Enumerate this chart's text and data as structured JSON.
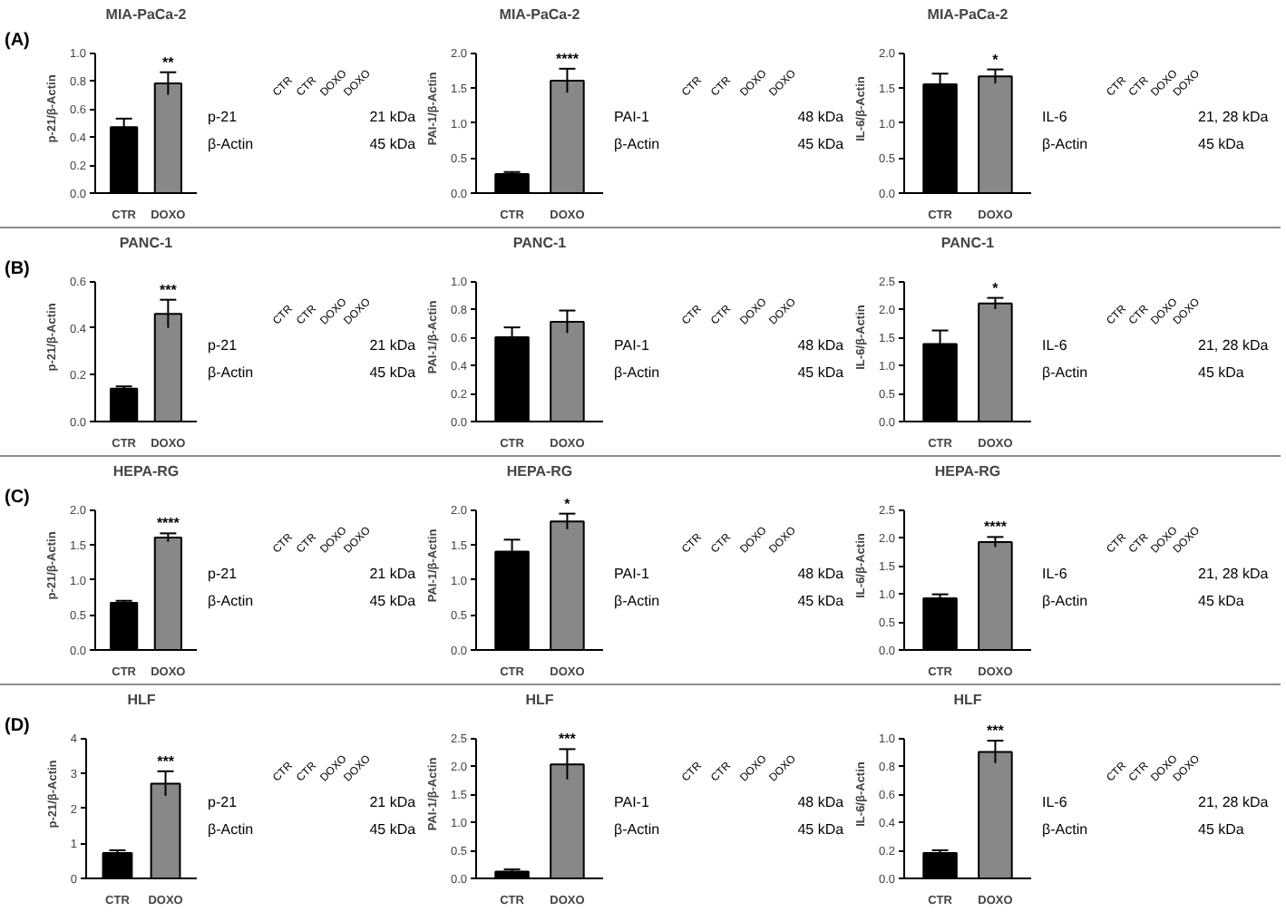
{
  "chart_data": [
    {
      "type": "bar",
      "title": "MIA-PaCa-2",
      "ylabel": "p-21/β-Actin",
      "categories": [
        "CTR",
        "DOXO"
      ],
      "values": [
        0.47,
        0.78
      ],
      "colors": [
        "#000000",
        "#888888"
      ],
      "errors": [
        0.06,
        0.08
      ],
      "ylim": [
        0,
        1
      ],
      "yticks": [
        {
          "value": 0,
          "label": "0.0"
        },
        0.2,
        0.4,
        0.6,
        0.8,
        {
          "value": 1,
          "label": "1.0"
        }
      ],
      "annotations": [
        "(A)",
        {
          "text": "**",
          "x": "DOXO",
          "y": 0.86
        }
      ]
    },
    {
      "type": "other",
      "categories": [
        "CTR",
        "CTR",
        "DOXO",
        "DOXO"
      ],
      "y_categories": [
        "p-21",
        "β-Actin"
      ],
      "y2_categories": [
        "21 kDa",
        "45 kDa"
      ]
    },
    {
      "type": "bar",
      "title": "MIA-PaCa-2",
      "ylabel": "PAI-1/β-Actin",
      "categories": [
        "CTR",
        "DOXO"
      ],
      "values": [
        0.27,
        1.6
      ],
      "colors": [
        "#000000",
        "#888888"
      ],
      "errors": [
        0.03,
        0.17
      ],
      "ylim": [
        0,
        2
      ],
      "yticks": [
        {
          "value": 0,
          "label": "0.0"
        },
        0.5,
        {
          "value": 1,
          "label": "1.0"
        },
        1.5,
        {
          "value": 2,
          "label": "2.0"
        }
      ],
      "annotations": [
        {
          "text": "****",
          "x": "DOXO",
          "y": 1.77
        }
      ]
    },
    {
      "type": "other",
      "categories": [
        "CTR",
        "CTR",
        "DOXO",
        "DOXO"
      ],
      "y_categories": [
        "PAI-1",
        "β-Actin"
      ],
      "y2_categories": [
        "48 kDa",
        "45 kDa"
      ]
    },
    {
      "type": "bar",
      "title": "MIA-PaCa-2",
      "ylabel": "IL-6/β-Actin",
      "categories": [
        "CTR",
        "DOXO"
      ],
      "values": [
        1.55,
        1.66
      ],
      "colors": [
        "#000000",
        "#888888"
      ],
      "errors": [
        0.15,
        0.1
      ],
      "ylim": [
        0,
        2
      ],
      "yticks": [
        {
          "value": 0,
          "label": "0.0"
        },
        0.5,
        {
          "value": 1,
          "label": "1.0"
        },
        1.5,
        {
          "value": 2,
          "label": "2.0"
        }
      ],
      "annotations": [
        {
          "text": "*",
          "x": "DOXO",
          "y": 1.76
        }
      ]
    },
    {
      "type": "other",
      "categories": [
        "CTR",
        "CTR",
        "DOXO",
        "DOXO"
      ],
      "y_categories": [
        "IL-6",
        "β-Actin"
      ],
      "y2_categories": [
        "21, 28 kDa",
        "45 kDa"
      ]
    },
    {
      "type": "bar",
      "title": "PANC-1",
      "ylabel": "p-21/β-Actin",
      "categories": [
        "CTR",
        "DOXO"
      ],
      "values": [
        0.14,
        0.46
      ],
      "colors": [
        "#000000",
        "#888888"
      ],
      "errors": [
        0.01,
        0.06
      ],
      "ylim": [
        0,
        0.6
      ],
      "yticks": [
        {
          "value": 0,
          "label": "0.0"
        },
        0.2,
        0.4,
        0.6
      ],
      "annotations": [
        "(B)",
        {
          "text": "***",
          "x": "DOXO",
          "y": 0.52
        }
      ]
    },
    {
      "type": "other",
      "categories": [
        "CTR",
        "CTR",
        "DOXO",
        "DOXO"
      ],
      "y_categories": [
        "p-21",
        "β-Actin"
      ],
      "y2_categories": [
        "21 kDa",
        "45 kDa"
      ]
    },
    {
      "type": "bar",
      "title": "PANC-1",
      "ylabel": "PAI-1/β-Actin",
      "categories": [
        "CTR",
        "DOXO"
      ],
      "values": [
        0.6,
        0.71
      ],
      "colors": [
        "#000000",
        "#888888"
      ],
      "errors": [
        0.07,
        0.08
      ],
      "ylim": [
        0,
        1
      ],
      "yticks": [
        {
          "value": 0,
          "label": "0.0"
        },
        0.2,
        0.4,
        0.6,
        0.8,
        {
          "value": 1,
          "label": "1.0"
        }
      ]
    },
    {
      "type": "other",
      "categories": [
        "CTR",
        "CTR",
        "DOXO",
        "DOXO"
      ],
      "y_categories": [
        "PAI-1",
        "β-Actin"
      ],
      "y2_categories": [
        "48 kDa",
        "45 kDa"
      ]
    },
    {
      "type": "bar",
      "title": "PANC-1",
      "ylabel": "IL-6/β-Actin",
      "categories": [
        "CTR",
        "DOXO"
      ],
      "values": [
        1.38,
        2.1
      ],
      "colors": [
        "#000000",
        "#888888"
      ],
      "errors": [
        0.24,
        0.1
      ],
      "ylim": [
        0,
        2.5
      ],
      "yticks": [
        {
          "value": 0,
          "label": "0.0"
        },
        0.5,
        {
          "value": 1,
          "label": "1.0"
        },
        1.5,
        {
          "value": 2,
          "label": "2.0"
        },
        2.5
      ],
      "annotations": [
        {
          "text": "*",
          "x": "DOXO",
          "y": 2.2
        }
      ]
    },
    {
      "type": "other",
      "categories": [
        "CTR",
        "CTR",
        "DOXO",
        "DOXO"
      ],
      "y_categories": [
        "IL-6",
        "β-Actin"
      ],
      "y2_categories": [
        "21, 28 kDa",
        "45 kDa"
      ]
    },
    {
      "type": "bar",
      "title": "HEPA-RG",
      "ylabel": "p-21/β-Actin",
      "categories": [
        "CTR",
        "DOXO"
      ],
      "values": [
        0.67,
        1.6
      ],
      "colors": [
        "#000000",
        "#888888"
      ],
      "errors": [
        0.03,
        0.06
      ],
      "ylim": [
        0,
        2
      ],
      "yticks": [
        {
          "value": 0,
          "label": "0.0"
        },
        0.5,
        {
          "value": 1,
          "label": "1.0"
        },
        1.5,
        {
          "value": 2,
          "label": "2.0"
        }
      ],
      "annotations": [
        "(C)",
        {
          "text": "****",
          "x": "DOXO",
          "y": 1.66
        }
      ]
    },
    {
      "type": "other",
      "categories": [
        "CTR",
        "CTR",
        "DOXO",
        "DOXO"
      ],
      "y_categories": [
        "p-21",
        "β-Actin"
      ],
      "y2_categories": [
        "21 kDa",
        "45 kDa"
      ]
    },
    {
      "type": "bar",
      "title": "HEPA-RG",
      "ylabel": "PAI-1/β-Actin",
      "categories": [
        "CTR",
        "DOXO"
      ],
      "values": [
        1.4,
        1.83
      ],
      "colors": [
        "#000000",
        "#888888"
      ],
      "errors": [
        0.17,
        0.11
      ],
      "ylim": [
        0,
        2
      ],
      "yticks": [
        {
          "value": 0,
          "label": "0.0"
        },
        0.5,
        {
          "value": 1,
          "label": "1.0"
        },
        1.5,
        {
          "value": 2,
          "label": "2.0"
        }
      ],
      "annotations": [
        {
          "text": "*",
          "x": "DOXO",
          "y": 1.94
        }
      ]
    },
    {
      "type": "other",
      "categories": [
        "CTR",
        "CTR",
        "DOXO",
        "DOXO"
      ],
      "y_categories": [
        "PAI-1",
        "β-Actin"
      ],
      "y2_categories": [
        "48 kDa",
        "45 kDa"
      ]
    },
    {
      "type": "bar",
      "title": "HEPA-RG",
      "ylabel": "IL-6/β-Actin",
      "categories": [
        "CTR",
        "DOXO"
      ],
      "values": [
        0.92,
        1.92
      ],
      "colors": [
        "#000000",
        "#888888"
      ],
      "errors": [
        0.07,
        0.09
      ],
      "ylim": [
        0,
        2.5
      ],
      "yticks": [
        {
          "value": 0,
          "label": "0.0"
        },
        0.5,
        {
          "value": 1,
          "label": "1.0"
        },
        1.5,
        {
          "value": 2,
          "label": "2.0"
        },
        2.5
      ],
      "annotations": [
        {
          "text": "****",
          "x": "DOXO",
          "y": 2.01
        }
      ]
    },
    {
      "type": "other",
      "categories": [
        "CTR",
        "CTR",
        "DOXO",
        "DOXO"
      ],
      "y_categories": [
        "IL-6",
        "β-Actin"
      ],
      "y2_categories": [
        "21, 28 kDa",
        "45 kDa"
      ]
    },
    {
      "type": "bar",
      "title": "HLF",
      "ylabel": "p-21/β-Actin",
      "categories": [
        "CTR",
        "DOXO"
      ],
      "values": [
        0.72,
        2.7
      ],
      "colors": [
        "#000000",
        "#888888"
      ],
      "errors": [
        0.08,
        0.35
      ],
      "ylim": [
        0,
        4
      ],
      "yticks": [
        0,
        1,
        2,
        3,
        4
      ],
      "annotations": [
        "(D)",
        {
          "text": "***",
          "x": "DOXO",
          "y": 3.05
        }
      ]
    },
    {
      "type": "other",
      "categories": [
        "CTR",
        "CTR",
        "DOXO",
        "DOXO"
      ],
      "y_categories": [
        "p-21",
        "β-Actin"
      ],
      "y2_categories": [
        "21 kDa",
        "45 kDa"
      ]
    },
    {
      "type": "bar",
      "title": "HLF",
      "ylabel": "PAI-1/β-Actin",
      "categories": [
        "CTR",
        "DOXO"
      ],
      "values": [
        0.12,
        2.03
      ],
      "colors": [
        "#000000",
        "#888888"
      ],
      "errors": [
        0.04,
        0.27
      ],
      "ylim": [
        0,
        2.5
      ],
      "yticks": [
        {
          "value": 0,
          "label": "0.0"
        },
        0.5,
        {
          "value": 1,
          "label": "1.0"
        },
        1.5,
        {
          "value": 2,
          "label": "2.0"
        },
        2.5
      ],
      "annotations": [
        {
          "text": "***",
          "x": "DOXO",
          "y": 2.3
        }
      ]
    },
    {
      "type": "other",
      "categories": [
        "CTR",
        "CTR",
        "DOXO",
        "DOXO"
      ],
      "y_categories": [
        "PAI-1",
        "β-Actin"
      ],
      "y2_categories": [
        "48 kDa",
        "45 kDa"
      ]
    },
    {
      "type": "bar",
      "title": "HLF",
      "ylabel": "IL-6/β-Actin",
      "categories": [
        "CTR",
        "DOXO"
      ],
      "values": [
        0.18,
        0.9
      ],
      "colors": [
        "#000000",
        "#888888"
      ],
      "errors": [
        0.02,
        0.08
      ],
      "ylim": [
        0,
        1
      ],
      "yticks": [
        {
          "value": 0,
          "label": "0.0"
        },
        0.2,
        0.4,
        0.6,
        0.8,
        {
          "value": 1,
          "label": "1.0"
        }
      ],
      "annotations": [
        {
          "text": "***",
          "x": "DOXO",
          "y": 0.98
        }
      ]
    },
    {
      "type": "other",
      "categories": [
        "CTR",
        "CTR",
        "DOXO",
        "DOXO"
      ],
      "y_categories": [
        "IL-6",
        "β-Actin"
      ],
      "y2_categories": [
        "21, 28 kDa",
        "45 kDa"
      ]
    }
  ]
}
